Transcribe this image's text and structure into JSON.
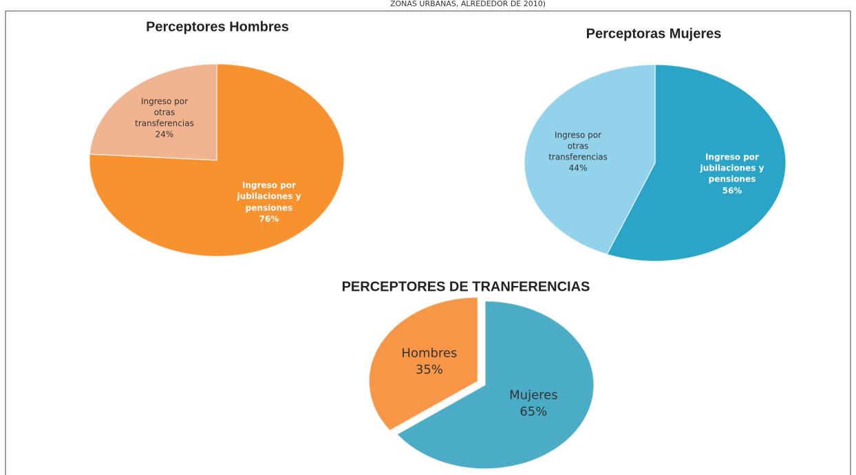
{
  "header": "ZONAS URBANAS, ALREDEDOR DE 2010)",
  "chart_data": [
    {
      "type": "pie",
      "title": "Perceptores Hombres",
      "categories": [
        "Ingreso por jubilaciones y pensiones",
        "Ingreso por otras transferencias"
      ],
      "values": [
        76,
        24
      ],
      "value_labels": [
        "76%",
        "24%"
      ],
      "colors": [
        "#f7922e",
        "#f0b590"
      ]
    },
    {
      "type": "pie",
      "title": "Perceptoras Mujeres",
      "categories": [
        "Ingreso por jubilaciones y pensiones",
        "Ingreso por otras transferencias"
      ],
      "values": [
        56,
        44
      ],
      "value_labels": [
        "56%",
        "44%"
      ],
      "colors": [
        "#2ba5c7",
        "#92d2ea"
      ]
    },
    {
      "type": "pie",
      "title": "PERCEPTORES DE TRANFERENCIAS",
      "categories": [
        "Mujeres",
        "Hombres"
      ],
      "values": [
        65,
        35
      ],
      "value_labels": [
        "65%",
        "35%"
      ],
      "colors": [
        "#4bacc6",
        "#f79646"
      ]
    }
  ]
}
